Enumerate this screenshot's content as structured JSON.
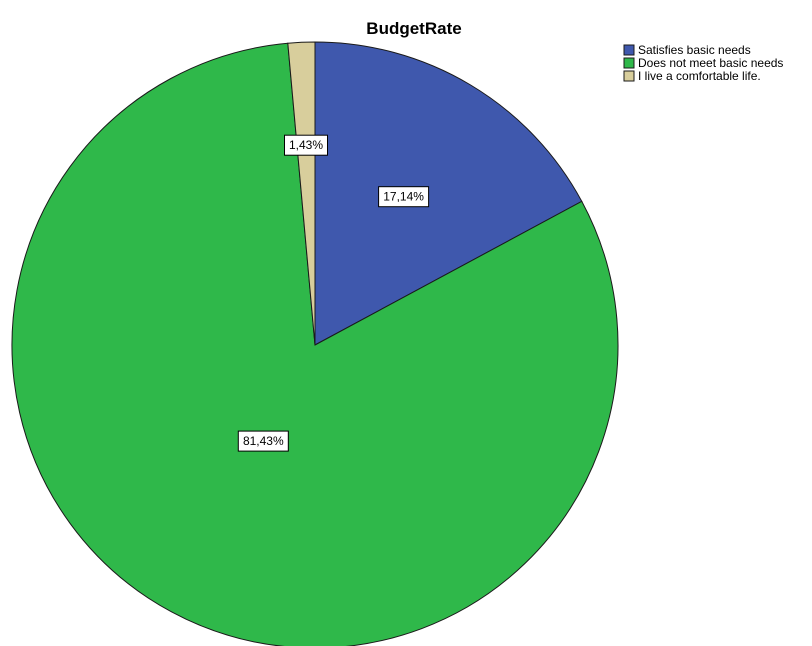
{
  "chart_data": {
    "type": "pie",
    "title": "BudgetRate",
    "categories": [
      "Satisfies basic needs",
      "Does not meet basic needs",
      "I live a comfortable life."
    ],
    "values": [
      17.14,
      81.43,
      1.43
    ],
    "data_labels": [
      "17,14%",
      "81,43%",
      "1,43%"
    ],
    "colors": [
      "#3f58ad",
      "#2fb84a",
      "#d8ce9c"
    ],
    "start_angle": "12 o'clock",
    "direction": "clockwise",
    "legend_position": "top-right"
  }
}
